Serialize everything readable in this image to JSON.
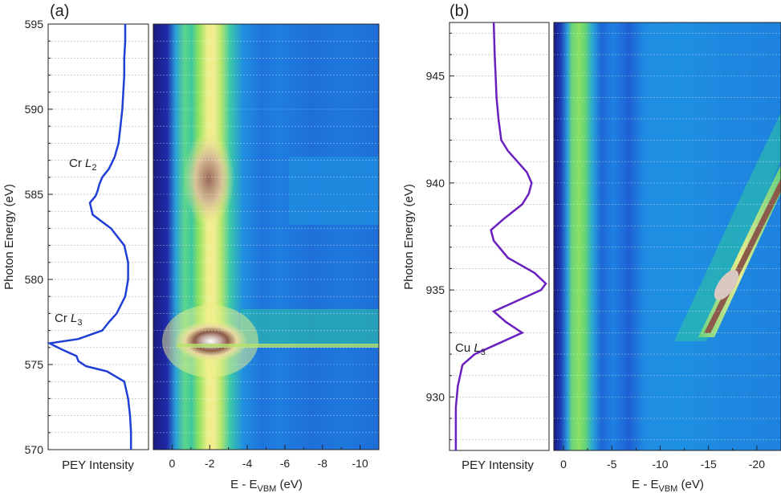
{
  "chart_data": [
    {
      "panel": "(a)",
      "type": "line",
      "element": "Cr",
      "ylabel": "Photon Energy (eV)",
      "xlabel": "PEY Intensity",
      "ylim": [
        570,
        595
      ],
      "yticks": [
        570,
        575,
        580,
        585,
        590,
        595
      ],
      "annotations": [
        {
          "label": "Cr ",
          "sub": "L",
          "subsub": "2",
          "energy": 586.5
        },
        {
          "label": "Cr ",
          "sub": "L",
          "subsub": "3",
          "energy": 577.5
        }
      ],
      "series": [
        {
          "name": "PEY",
          "color": "#1f3fd6",
          "points": [
            [
              570.0,
              0.15
            ],
            [
              571.0,
              0.15
            ],
            [
              572.0,
              0.16
            ],
            [
              573.0,
              0.18
            ],
            [
              574.0,
              0.22
            ],
            [
              574.6,
              0.4
            ],
            [
              574.9,
              0.62
            ],
            [
              575.2,
              0.7
            ],
            [
              575.5,
              0.72
            ],
            [
              575.7,
              0.8
            ],
            [
              575.9,
              0.88
            ],
            [
              576.1,
              0.95
            ],
            [
              576.25,
              1.0
            ],
            [
              576.5,
              0.7
            ],
            [
              577.0,
              0.45
            ],
            [
              577.5,
              0.38
            ],
            [
              578.0,
              0.3
            ],
            [
              579.0,
              0.21
            ],
            [
              580.0,
              0.18
            ],
            [
              581.0,
              0.18
            ],
            [
              582.0,
              0.22
            ],
            [
              583.0,
              0.36
            ],
            [
              583.8,
              0.55
            ],
            [
              584.5,
              0.58
            ],
            [
              584.9,
              0.52
            ],
            [
              585.2,
              0.5
            ],
            [
              585.6,
              0.48
            ],
            [
              586.0,
              0.45
            ],
            [
              586.5,
              0.38
            ],
            [
              587.2,
              0.32
            ],
            [
              588.0,
              0.28
            ],
            [
              589.0,
              0.26
            ],
            [
              590.0,
              0.24
            ],
            [
              591.0,
              0.23
            ],
            [
              592.0,
              0.22
            ],
            [
              593.0,
              0.22
            ],
            [
              594.0,
              0.21
            ],
            [
              595.0,
              0.21
            ]
          ]
        }
      ]
    },
    {
      "panel": "(a)",
      "type": "heatmap",
      "xlabel_main": "E - E",
      "xlabel_sub": "VBM",
      "xlabel_unit": " (eV)",
      "xlim": [
        1,
        -11
      ],
      "xticks": [
        0,
        -2,
        -4,
        -6,
        -8,
        -10
      ],
      "ylim": [
        570,
        595
      ],
      "colormap": [
        "#1a1a82",
        "#1e3ab4",
        "#1e64dc",
        "#1e9be6",
        "#2ec8a0",
        "#8ce05a",
        "#eef08a",
        "#f2d9a0",
        "#8b5a4a",
        "#ffffff"
      ],
      "features": [
        {
          "type": "band",
          "E": -2.0,
          "width": 0.9,
          "intensity": 0.55
        },
        {
          "type": "band",
          "E": 0.4,
          "width": 0.25,
          "intensity": 0.3
        },
        {
          "type": "resonance",
          "E": -2.0,
          "energy": 576.3,
          "intensity": 1.0
        },
        {
          "type": "resonance",
          "E": -2.0,
          "energy": 585.3,
          "intensity": 0.8
        }
      ]
    },
    {
      "panel": "(b)",
      "type": "line",
      "element": "Cu",
      "ylabel": "Photon Energy (eV)",
      "xlabel": "PEY Intensity",
      "ylim": [
        927.5,
        947.5
      ],
      "yticks": [
        930,
        935,
        940,
        945
      ],
      "annotations": [
        {
          "label": "Cu ",
          "sub": "L",
          "subsub": "3",
          "energy": 932.3
        }
      ],
      "series": [
        {
          "name": "PEY",
          "color": "#6a1fbf",
          "points": [
            [
              927.5,
              0.95
            ],
            [
              928.5,
              0.95
            ],
            [
              929.5,
              0.95
            ],
            [
              930.5,
              0.93
            ],
            [
              931.5,
              0.88
            ],
            [
              932.0,
              0.75
            ],
            [
              932.5,
              0.5
            ],
            [
              933.0,
              0.25
            ],
            [
              933.5,
              0.42
            ],
            [
              934.0,
              0.55
            ],
            [
              934.5,
              0.3
            ],
            [
              935.0,
              0.05
            ],
            [
              935.3,
              0.0
            ],
            [
              935.8,
              0.12
            ],
            [
              936.5,
              0.4
            ],
            [
              937.3,
              0.55
            ],
            [
              937.8,
              0.58
            ],
            [
              938.3,
              0.45
            ],
            [
              939.0,
              0.25
            ],
            [
              939.5,
              0.18
            ],
            [
              940.0,
              0.15
            ],
            [
              940.5,
              0.2
            ],
            [
              941.0,
              0.3
            ],
            [
              941.5,
              0.4
            ],
            [
              942.0,
              0.47
            ],
            [
              943.0,
              0.5
            ],
            [
              944.0,
              0.52
            ],
            [
              945.0,
              0.53
            ],
            [
              946.0,
              0.54
            ],
            [
              947.5,
              0.55
            ]
          ]
        }
      ]
    },
    {
      "panel": "(b)",
      "type": "heatmap",
      "xlabel_main": "E - E",
      "xlabel_sub": "VBM",
      "xlabel_unit": " (eV)",
      "xlim": [
        1,
        -22.5
      ],
      "xticks": [
        0,
        -5,
        -10,
        -15,
        -20
      ],
      "ylim": [
        927.5,
        947.5
      ],
      "colormap": [
        "#1a1a82",
        "#1e3ab4",
        "#1e64dc",
        "#1e9be6",
        "#2ec8a0",
        "#8ce05a",
        "#eef08a",
        "#f2d9a0",
        "#8b5a4a",
        "#ffffff"
      ],
      "features": [
        {
          "type": "band",
          "E": -2.2,
          "width": 1.1,
          "intensity": 0.5
        },
        {
          "type": "auger",
          "E_start": -13.5,
          "energy_start": 932.5,
          "E_end": -22.5,
          "energy_end": 941.0,
          "intensity": 0.9
        }
      ]
    }
  ],
  "panel_labels": [
    "(a)",
    "(b)"
  ]
}
